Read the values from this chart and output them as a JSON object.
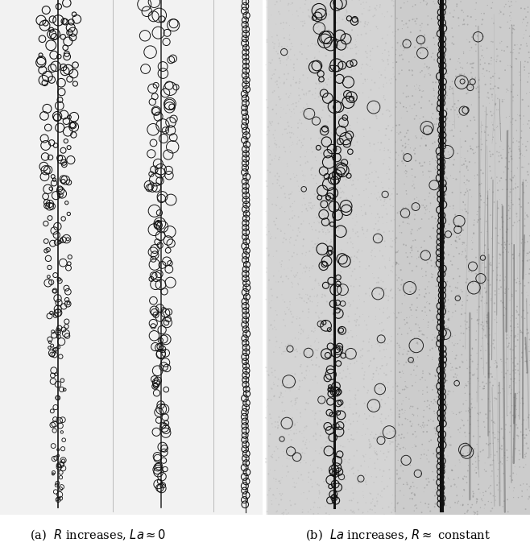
{
  "figure_width": 6.58,
  "figure_height": 6.89,
  "dpi": 100,
  "bg_color": "#ffffff",
  "caption_a": "(a)  $R$ increases, $La \\approx 0$",
  "caption_b": "(b)  $La$ increases, $R \\approx$ constant",
  "caption_fontsize": 10.5,
  "panel_a_bg": "#f0f0f0",
  "panel_b_left_bg": "#d0d0d0",
  "panel_b_right_bg": "#b8b8b8",
  "bubble_edge_color": "#111111",
  "stem_color": "#222222"
}
